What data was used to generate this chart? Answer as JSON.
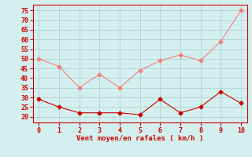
{
  "x": [
    0,
    1,
    2,
    3,
    4,
    5,
    6,
    7,
    8,
    9,
    10
  ],
  "y_rafales": [
    50,
    46,
    35,
    42,
    35,
    44,
    49,
    52,
    49,
    59,
    75
  ],
  "y_moyen": [
    29,
    25,
    22,
    22,
    22,
    21,
    29,
    22,
    25,
    33,
    27
  ],
  "line_color_rafales": "#f08080",
  "line_color_moyen": "#cc0000",
  "bg_color": "#d4f0ee",
  "grid_color": "#aacccc",
  "axis_color": "#cc0000",
  "tick_color": "#cc0000",
  "xlabel": "Vent moyen/en rafales ( km/h )",
  "xlabel_color": "#cc0000",
  "ylim": [
    17,
    78
  ],
  "xlim": [
    -0.3,
    10.3
  ],
  "yticks": [
    20,
    25,
    30,
    35,
    40,
    45,
    50,
    55,
    60,
    65,
    70,
    75
  ],
  "xticks": [
    0,
    1,
    2,
    3,
    4,
    5,
    6,
    7,
    8,
    9,
    10
  ],
  "label_fontsize": 6.5,
  "tick_fontsize": 6
}
